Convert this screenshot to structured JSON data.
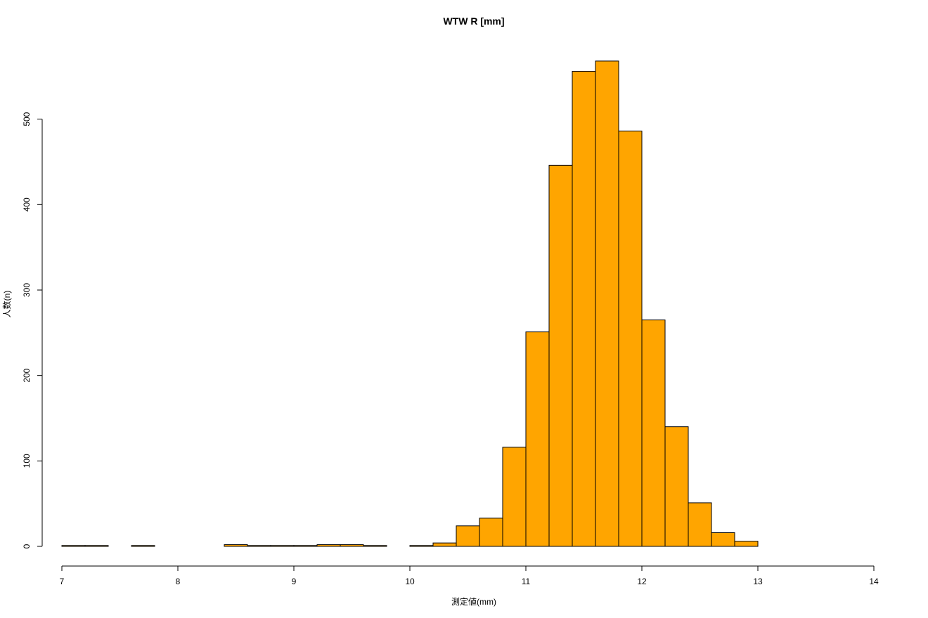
{
  "chart_data": {
    "type": "bar",
    "title": "WTW R [mm]",
    "xlabel": "測定値(mm)",
    "ylabel": "人数(n)",
    "xlim": [
      7,
      14
    ],
    "ylim": [
      0,
      570
    ],
    "x_ticks": [
      7,
      8,
      9,
      10,
      11,
      12,
      13,
      14
    ],
    "y_ticks": [
      0,
      100,
      200,
      300,
      400,
      500
    ],
    "bar_color": "#FFA500",
    "bin_width": 0.2,
    "bin_starts": [
      7.0,
      7.2,
      7.4,
      7.6,
      7.8,
      8.0,
      8.2,
      8.4,
      8.6,
      8.8,
      9.0,
      9.2,
      9.4,
      9.6,
      9.8,
      10.0,
      10.2,
      10.4,
      10.6,
      10.8,
      11.0,
      11.2,
      11.4,
      11.6,
      11.8,
      12.0,
      12.2,
      12.4,
      12.6,
      12.8
    ],
    "values": [
      1,
      1,
      0,
      1,
      0,
      0,
      0,
      2,
      1,
      1,
      1,
      2,
      2,
      1,
      0,
      1,
      4,
      24,
      33,
      116,
      251,
      446,
      556,
      568,
      486,
      265,
      140,
      51,
      16,
      6
    ]
  }
}
